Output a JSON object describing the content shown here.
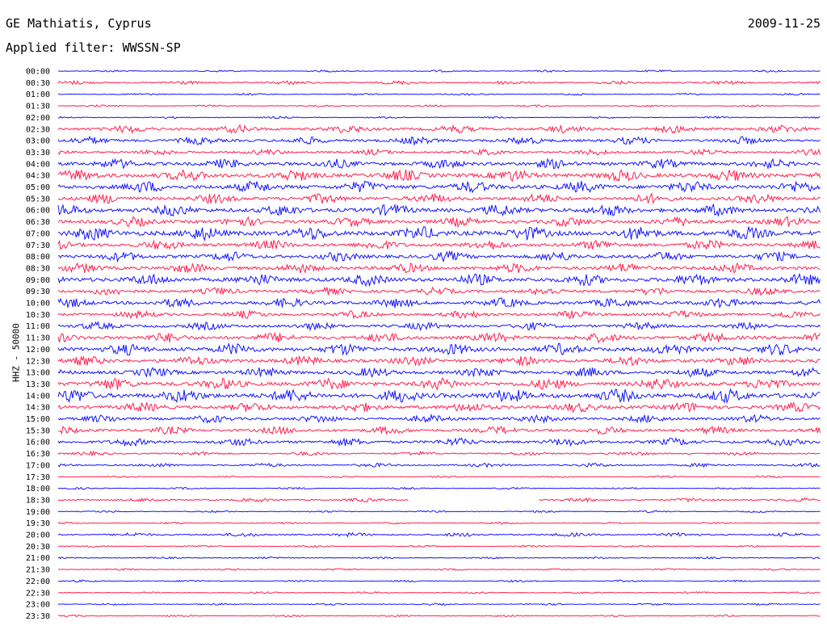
{
  "header": {
    "station": "GE Mathiatis, Cyprus",
    "date": "2009-11-25",
    "filter": "Applied filter: WWSSN-SP"
  },
  "side_label": "HHZ - 50000",
  "colors": {
    "even": "#1414ff",
    "odd": "#ff1f4f"
  },
  "chart_data": {
    "type": "line",
    "title": "GE Mathiatis, Cyprus",
    "ylabel": "HHZ - 50000",
    "row_labels": [
      "00:00",
      "00:30",
      "01:00",
      "01:30",
      "02:00",
      "02:30",
      "03:00",
      "03:30",
      "04:00",
      "04:30",
      "05:00",
      "05:30",
      "06:00",
      "06:30",
      "07:00",
      "07:30",
      "08:00",
      "08:30",
      "09:00",
      "09:30",
      "10:00",
      "10:30",
      "11:00",
      "11:30",
      "12:00",
      "12:30",
      "13:00",
      "13:30",
      "14:00",
      "14:30",
      "15:00",
      "15:30",
      "16:00",
      "16:30",
      "17:00",
      "17:30",
      "18:00",
      "18:30",
      "19:00",
      "19:30",
      "20:00",
      "20:30",
      "21:00",
      "21:30",
      "22:00",
      "22:30",
      "23:00",
      "23:30"
    ],
    "trace_amplitude": [
      1,
      2,
      1,
      1,
      1,
      4,
      4,
      3,
      5,
      6,
      6,
      5,
      6,
      5,
      7,
      5,
      5,
      5,
      6,
      4,
      5,
      4,
      4,
      5,
      6,
      5,
      5,
      6,
      7,
      5,
      4,
      4,
      4,
      2,
      2,
      1,
      1,
      2,
      1,
      1,
      2,
      1,
      1,
      1,
      1,
      1,
      1,
      1
    ],
    "gap": {
      "row": "18:30",
      "from_fraction": 0.46,
      "to_fraction": 0.63
    }
  }
}
